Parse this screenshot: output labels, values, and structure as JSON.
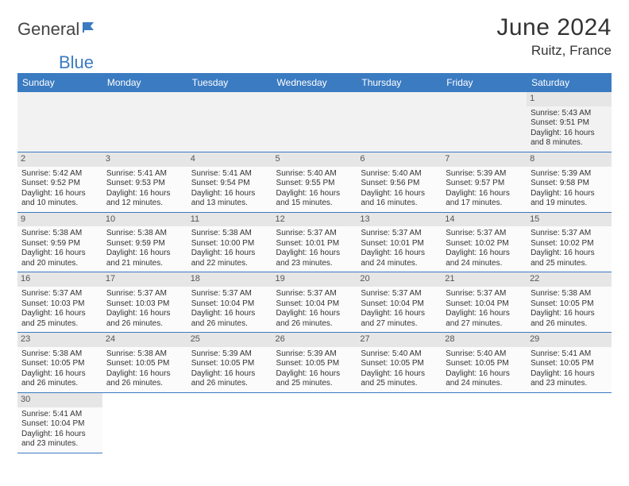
{
  "brand": {
    "part1": "General",
    "part2": "Blue"
  },
  "title": "June 2024",
  "location": "Ruitz, France",
  "colors": {
    "header_bg": "#3b7bc1",
    "header_text": "#ffffff",
    "daynum_bg": "#e6e6e6",
    "row_border": "#3b7bc1",
    "logo_blue": "#3b7bc1",
    "logo_gray": "#444444"
  },
  "weekdays": [
    "Sunday",
    "Monday",
    "Tuesday",
    "Wednesday",
    "Thursday",
    "Friday",
    "Saturday"
  ],
  "weeks": [
    [
      null,
      null,
      null,
      null,
      null,
      null,
      {
        "n": "1",
        "sr": "Sunrise: 5:43 AM",
        "ss": "Sunset: 9:51 PM",
        "d1": "Daylight: 16 hours",
        "d2": "and 8 minutes."
      }
    ],
    [
      {
        "n": "2",
        "sr": "Sunrise: 5:42 AM",
        "ss": "Sunset: 9:52 PM",
        "d1": "Daylight: 16 hours",
        "d2": "and 10 minutes."
      },
      {
        "n": "3",
        "sr": "Sunrise: 5:41 AM",
        "ss": "Sunset: 9:53 PM",
        "d1": "Daylight: 16 hours",
        "d2": "and 12 minutes."
      },
      {
        "n": "4",
        "sr": "Sunrise: 5:41 AM",
        "ss": "Sunset: 9:54 PM",
        "d1": "Daylight: 16 hours",
        "d2": "and 13 minutes."
      },
      {
        "n": "5",
        "sr": "Sunrise: 5:40 AM",
        "ss": "Sunset: 9:55 PM",
        "d1": "Daylight: 16 hours",
        "d2": "and 15 minutes."
      },
      {
        "n": "6",
        "sr": "Sunrise: 5:40 AM",
        "ss": "Sunset: 9:56 PM",
        "d1": "Daylight: 16 hours",
        "d2": "and 16 minutes."
      },
      {
        "n": "7",
        "sr": "Sunrise: 5:39 AM",
        "ss": "Sunset: 9:57 PM",
        "d1": "Daylight: 16 hours",
        "d2": "and 17 minutes."
      },
      {
        "n": "8",
        "sr": "Sunrise: 5:39 AM",
        "ss": "Sunset: 9:58 PM",
        "d1": "Daylight: 16 hours",
        "d2": "and 19 minutes."
      }
    ],
    [
      {
        "n": "9",
        "sr": "Sunrise: 5:38 AM",
        "ss": "Sunset: 9:59 PM",
        "d1": "Daylight: 16 hours",
        "d2": "and 20 minutes."
      },
      {
        "n": "10",
        "sr": "Sunrise: 5:38 AM",
        "ss": "Sunset: 9:59 PM",
        "d1": "Daylight: 16 hours",
        "d2": "and 21 minutes."
      },
      {
        "n": "11",
        "sr": "Sunrise: 5:38 AM",
        "ss": "Sunset: 10:00 PM",
        "d1": "Daylight: 16 hours",
        "d2": "and 22 minutes."
      },
      {
        "n": "12",
        "sr": "Sunrise: 5:37 AM",
        "ss": "Sunset: 10:01 PM",
        "d1": "Daylight: 16 hours",
        "d2": "and 23 minutes."
      },
      {
        "n": "13",
        "sr": "Sunrise: 5:37 AM",
        "ss": "Sunset: 10:01 PM",
        "d1": "Daylight: 16 hours",
        "d2": "and 24 minutes."
      },
      {
        "n": "14",
        "sr": "Sunrise: 5:37 AM",
        "ss": "Sunset: 10:02 PM",
        "d1": "Daylight: 16 hours",
        "d2": "and 24 minutes."
      },
      {
        "n": "15",
        "sr": "Sunrise: 5:37 AM",
        "ss": "Sunset: 10:02 PM",
        "d1": "Daylight: 16 hours",
        "d2": "and 25 minutes."
      }
    ],
    [
      {
        "n": "16",
        "sr": "Sunrise: 5:37 AM",
        "ss": "Sunset: 10:03 PM",
        "d1": "Daylight: 16 hours",
        "d2": "and 25 minutes."
      },
      {
        "n": "17",
        "sr": "Sunrise: 5:37 AM",
        "ss": "Sunset: 10:03 PM",
        "d1": "Daylight: 16 hours",
        "d2": "and 26 minutes."
      },
      {
        "n": "18",
        "sr": "Sunrise: 5:37 AM",
        "ss": "Sunset: 10:04 PM",
        "d1": "Daylight: 16 hours",
        "d2": "and 26 minutes."
      },
      {
        "n": "19",
        "sr": "Sunrise: 5:37 AM",
        "ss": "Sunset: 10:04 PM",
        "d1": "Daylight: 16 hours",
        "d2": "and 26 minutes."
      },
      {
        "n": "20",
        "sr": "Sunrise: 5:37 AM",
        "ss": "Sunset: 10:04 PM",
        "d1": "Daylight: 16 hours",
        "d2": "and 27 minutes."
      },
      {
        "n": "21",
        "sr": "Sunrise: 5:37 AM",
        "ss": "Sunset: 10:04 PM",
        "d1": "Daylight: 16 hours",
        "d2": "and 27 minutes."
      },
      {
        "n": "22",
        "sr": "Sunrise: 5:38 AM",
        "ss": "Sunset: 10:05 PM",
        "d1": "Daylight: 16 hours",
        "d2": "and 26 minutes."
      }
    ],
    [
      {
        "n": "23",
        "sr": "Sunrise: 5:38 AM",
        "ss": "Sunset: 10:05 PM",
        "d1": "Daylight: 16 hours",
        "d2": "and 26 minutes."
      },
      {
        "n": "24",
        "sr": "Sunrise: 5:38 AM",
        "ss": "Sunset: 10:05 PM",
        "d1": "Daylight: 16 hours",
        "d2": "and 26 minutes."
      },
      {
        "n": "25",
        "sr": "Sunrise: 5:39 AM",
        "ss": "Sunset: 10:05 PM",
        "d1": "Daylight: 16 hours",
        "d2": "and 26 minutes."
      },
      {
        "n": "26",
        "sr": "Sunrise: 5:39 AM",
        "ss": "Sunset: 10:05 PM",
        "d1": "Daylight: 16 hours",
        "d2": "and 25 minutes."
      },
      {
        "n": "27",
        "sr": "Sunrise: 5:40 AM",
        "ss": "Sunset: 10:05 PM",
        "d1": "Daylight: 16 hours",
        "d2": "and 25 minutes."
      },
      {
        "n": "28",
        "sr": "Sunrise: 5:40 AM",
        "ss": "Sunset: 10:05 PM",
        "d1": "Daylight: 16 hours",
        "d2": "and 24 minutes."
      },
      {
        "n": "29",
        "sr": "Sunrise: 5:41 AM",
        "ss": "Sunset: 10:05 PM",
        "d1": "Daylight: 16 hours",
        "d2": "and 23 minutes."
      }
    ],
    [
      {
        "n": "30",
        "sr": "Sunrise: 5:41 AM",
        "ss": "Sunset: 10:04 PM",
        "d1": "Daylight: 16 hours",
        "d2": "and 23 minutes."
      },
      null,
      null,
      null,
      null,
      null,
      null
    ]
  ]
}
